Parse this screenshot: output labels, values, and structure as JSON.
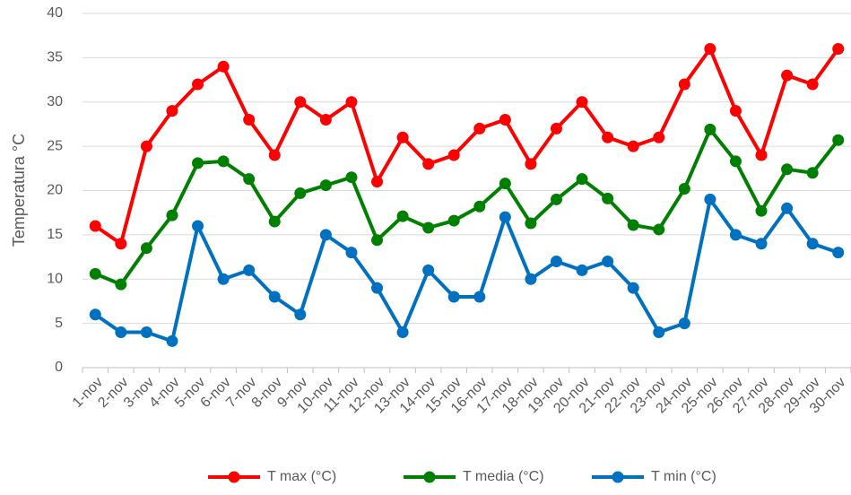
{
  "chart_data": {
    "type": "line",
    "y_label": "Temperatura °C",
    "categories": [
      "1-nov",
      "2-nov",
      "3-nov",
      "4-nov",
      "5-nov",
      "6-nov",
      "7-nov",
      "8-nov",
      "9-nov",
      "10-nov",
      "11-nov",
      "12-nov",
      "13-nov",
      "14-nov",
      "15-nov",
      "16-nov",
      "17-nov",
      "18-nov",
      "19-nov",
      "20-nov",
      "21-nov",
      "22-nov",
      "23-nov",
      "24-nov",
      "25-nov",
      "26-nov",
      "27-nov",
      "28-nov",
      "29-nov",
      "30-nov"
    ],
    "series": [
      {
        "name": "T max (°C)",
        "color": "#ff0000",
        "values": [
          16,
          14,
          25,
          29,
          32,
          34,
          28,
          24,
          30,
          28,
          30,
          21,
          26,
          23,
          24,
          27,
          28,
          23,
          27,
          30,
          26,
          25,
          26,
          32,
          36,
          29,
          24,
          33,
          32,
          36
        ]
      },
      {
        "name": "T media  (°C)",
        "color": "#008000",
        "values": [
          10.6,
          9.4,
          13.5,
          17.2,
          23.1,
          23.3,
          21.3,
          16.5,
          19.7,
          20.6,
          21.5,
          14.4,
          17.1,
          15.8,
          16.6,
          18.2,
          20.8,
          16.3,
          19,
          21.3,
          19.1,
          16.1,
          15.6,
          20.2,
          26.9,
          23.3,
          17.7,
          22.4,
          22,
          25.7
        ]
      },
      {
        "name": "T min (°C)",
        "color": "#0070c0",
        "values": [
          6,
          4,
          4,
          3,
          16,
          10,
          11,
          8,
          6,
          15,
          13,
          9,
          4,
          11,
          8,
          8,
          17,
          10,
          12,
          11,
          12,
          9,
          4,
          5,
          19,
          15,
          14,
          18,
          14,
          13
        ]
      }
    ],
    "ylim": [
      0,
      40
    ],
    "yticks": [
      0,
      5,
      10,
      15,
      20,
      25,
      30,
      35,
      40
    ],
    "grid": true,
    "legend": "bottom"
  }
}
